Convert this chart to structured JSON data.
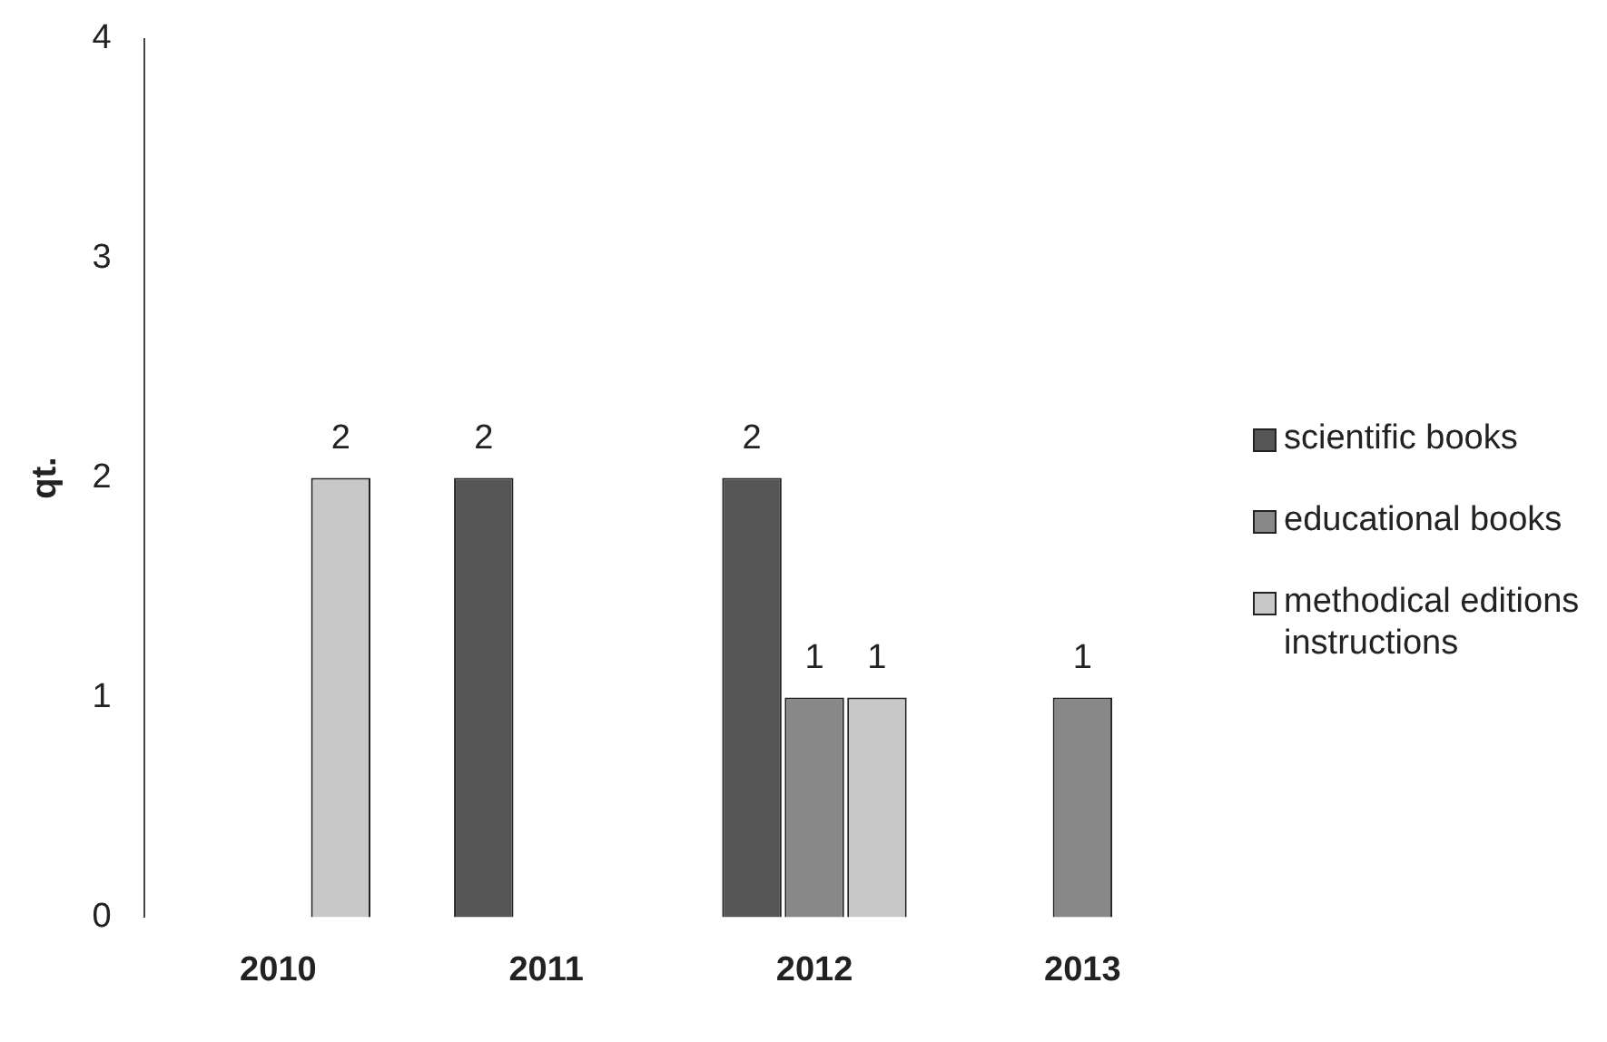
{
  "chart_data": {
    "type": "bar",
    "ylabel": "qt.",
    "categories": [
      "2010",
      "2011",
      "2012",
      "2013"
    ],
    "series": [
      {
        "name": "scientific books",
        "color": "#555555",
        "values": [
          null,
          2,
          2,
          null
        ]
      },
      {
        "name": "educational books",
        "color": "#888888",
        "values": [
          null,
          null,
          1,
          1
        ]
      },
      {
        "name": "methodical editions instructions",
        "color": "#c8c8c8",
        "values": [
          2,
          null,
          1,
          null
        ]
      }
    ],
    "ylim": [
      0,
      4
    ],
    "yticks": [
      0,
      1,
      2,
      3,
      4
    ],
    "grid": false,
    "legend": "right",
    "data_labels": true
  }
}
